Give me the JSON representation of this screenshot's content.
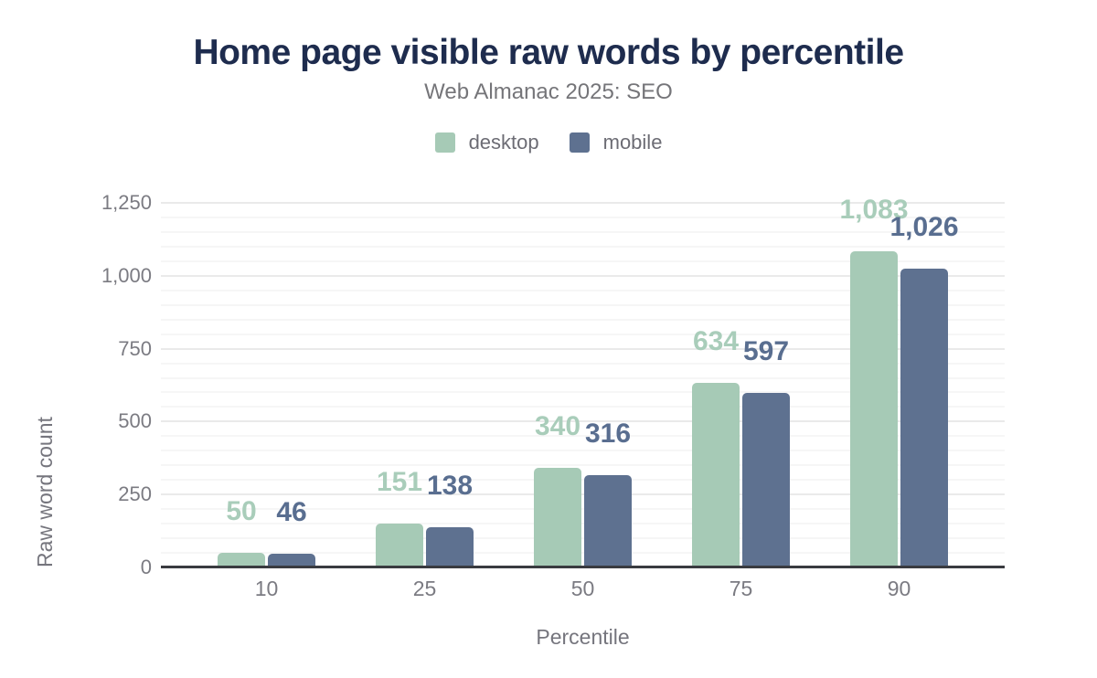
{
  "header": {
    "title": "Home page visible raw words by percentile",
    "subtitle": "Web Almanac 2025: SEO"
  },
  "legend": {
    "position": "top",
    "items": [
      {
        "label": "desktop",
        "color": "#a6cab6"
      },
      {
        "label": "mobile",
        "color": "#5e7190"
      }
    ]
  },
  "colors": {
    "title_text": "#1e2c4e",
    "muted_text": "#75757d",
    "axis_line": "#393b40",
    "gridline_major": "#eaeaea",
    "gridline_minor": "#f6f6f6",
    "background": "#ffffff"
  },
  "chart_data": {
    "type": "bar",
    "title": "Home page visible raw words by percentile",
    "subtitle": "Web Almanac 2025: SEO",
    "categories": [
      "10",
      "25",
      "50",
      "75",
      "90"
    ],
    "series": [
      {
        "name": "desktop",
        "color": "#a6cab6",
        "label_color": "#a9cdba",
        "values": [
          50,
          151,
          340,
          634,
          1083
        ],
        "labels": [
          "50",
          "151",
          "340",
          "634",
          "1,083"
        ]
      },
      {
        "name": "mobile",
        "color": "#5e7190",
        "label_color": "#596e90",
        "values": [
          46,
          138,
          316,
          597,
          1026
        ],
        "labels": [
          "46",
          "138",
          "316",
          "597",
          "1,026"
        ]
      }
    ],
    "xlabel": "Percentile",
    "ylabel": "Raw word count",
    "ylim": [
      0,
      1250
    ],
    "yticks": [
      {
        "value": 0,
        "label": "0"
      },
      {
        "value": 250,
        "label": "250"
      },
      {
        "value": 500,
        "label": "500"
      },
      {
        "value": 750,
        "label": "750"
      },
      {
        "value": 1000,
        "label": "1,000"
      },
      {
        "value": 1250,
        "label": "1,250"
      }
    ],
    "grid": {
      "minor_step": 50,
      "major_step": 250,
      "grid_on": true
    },
    "legend_position": "top",
    "data_labels": true
  }
}
